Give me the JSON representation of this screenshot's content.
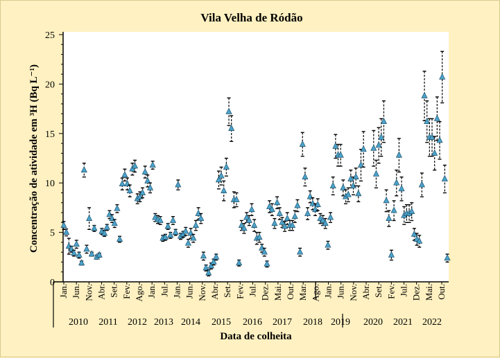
{
  "chart_data": {
    "type": "scatter",
    "title": "Vila Velha de Ródão",
    "xlabel": "Data de colheita",
    "ylabel": "Concentração de atividade em ³H (Bq L⁻¹)",
    "ylim": [
      0,
      25
    ],
    "yticks": [
      0,
      5,
      10,
      15,
      20,
      25
    ],
    "grid": false,
    "legend": "none",
    "marker": "triangle",
    "marker_color": "#4BA3CC",
    "errorbar_color": "#000000",
    "background_color": "#FFF1C1",
    "month_ticks": [
      {
        "label": "Jan.",
        "date": "2010-01"
      },
      {
        "label": "Jun.",
        "date": "2010-06"
      },
      {
        "label": "Nov.",
        "date": "2010-11"
      },
      {
        "label": "Abr.",
        "date": "2011-04"
      },
      {
        "label": "Set.",
        "date": "2011-09"
      },
      {
        "label": "Fev.",
        "date": "2012-02"
      },
      {
        "label": "Ago.",
        "date": "2012-08"
      },
      {
        "label": "Jan.",
        "date": "2013-01"
      },
      {
        "label": "Jul.",
        "date": "2013-07"
      },
      {
        "label": "Jan.",
        "date": "2014-01"
      },
      {
        "label": "Jun.",
        "date": "2014-06"
      },
      {
        "label": "Nov.",
        "date": "2014-11"
      },
      {
        "label": "Abr.",
        "date": "2015-04"
      },
      {
        "label": "Set.",
        "date": "2015-09"
      },
      {
        "label": "Fev.",
        "date": "2016-02"
      },
      {
        "label": "Jul.",
        "date": "2016-07"
      },
      {
        "label": "Dez.",
        "date": "2016-12"
      },
      {
        "label": "Mai.",
        "date": "2017-05"
      },
      {
        "label": "Out.",
        "date": "2017-10"
      },
      {
        "label": "Mar.",
        "date": "2018-03"
      },
      {
        "label": "Ago.",
        "date": "2018-08"
      },
      {
        "label": "Jan.",
        "date": "2019-01"
      },
      {
        "label": "Jun.",
        "date": "2019-06"
      },
      {
        "label": "Nov.",
        "date": "2019-11"
      },
      {
        "label": "Abr.",
        "date": "2020-04"
      },
      {
        "label": "Set.",
        "date": "2020-09"
      },
      {
        "label": "Fev.",
        "date": "2021-02"
      },
      {
        "label": "Jul.",
        "date": "2021-07"
      },
      {
        "label": "Dez.",
        "date": "2021-12"
      },
      {
        "label": "Mai.",
        "date": "2022-05"
      },
      {
        "label": "Out.",
        "date": "2022-10"
      }
    ],
    "years": [
      "2010",
      "2011",
      "2012",
      "2013",
      "2014",
      "2015",
      "2016",
      "2017",
      "2018",
      "2019",
      "2020",
      "2021",
      "2022"
    ],
    "points": [
      [
        "2010-01",
        5.7,
        0.4
      ],
      [
        "2010-02",
        5.0,
        0.35
      ],
      [
        "2010-03",
        3.6,
        0.8
      ],
      [
        "2010-04",
        3.3,
        0.3
      ],
      [
        "2010-05",
        2.9,
        0.3
      ],
      [
        "2010-06",
        3.8,
        0.4
      ],
      [
        "2010-07",
        2.7,
        0.3
      ],
      [
        "2010-08",
        1.9,
        0.2
      ],
      [
        "2010-09",
        11.3,
        0.7
      ],
      [
        "2010-10",
        3.3,
        0.4
      ],
      [
        "2010-11",
        6.4,
        1.1
      ],
      [
        "2010-12",
        2.8,
        0.2
      ],
      [
        "2011-01",
        5.4,
        0.3
      ],
      [
        "2011-02",
        2.5,
        0.2
      ],
      [
        "2011-03",
        2.7,
        0.2
      ],
      [
        "2011-04",
        5.1,
        0.3
      ],
      [
        "2011-05",
        4.9,
        0.3
      ],
      [
        "2011-06",
        5.5,
        0.3
      ],
      [
        "2011-07",
        6.8,
        0.4
      ],
      [
        "2011-08",
        6.4,
        0.4
      ],
      [
        "2011-09",
        5.9,
        0.4
      ],
      [
        "2011-10",
        7.4,
        0.4
      ],
      [
        "2011-11",
        4.3,
        0.3
      ],
      [
        "2011-12",
        9.9,
        0.6
      ],
      [
        "2012-01",
        10.8,
        0.6
      ],
      [
        "2012-02",
        9.9,
        0.6
      ],
      [
        "2012-03",
        9.2,
        0.6
      ],
      [
        "2012-04",
        11.4,
        0.6
      ],
      [
        "2012-05",
        11.7,
        0.6
      ],
      [
        "2012-06",
        8.4,
        0.5
      ],
      [
        "2012-07",
        8.6,
        0.5
      ],
      [
        "2012-08",
        9.0,
        0.5
      ],
      [
        "2012-09",
        11.1,
        0.6
      ],
      [
        "2012-10",
        10.2,
        0.6
      ],
      [
        "2012-11",
        9.5,
        0.5
      ],
      [
        "2012-12",
        11.8,
        0.4
      ],
      [
        "2013-01",
        6.5,
        0.4
      ],
      [
        "2013-02",
        6.3,
        0.4
      ],
      [
        "2013-03",
        6.2,
        0.4
      ],
      [
        "2013-04",
        4.4,
        0.3
      ],
      [
        "2013-05",
        4.5,
        0.3
      ],
      [
        "2013-06",
        5.6,
        0.3
      ],
      [
        "2013-07",
        4.7,
        0.3
      ],
      [
        "2013-08",
        6.2,
        0.4
      ],
      [
        "2013-09",
        5.0,
        0.3
      ],
      [
        "2013-10",
        9.8,
        0.5
      ],
      [
        "2013-11",
        4.6,
        0.3
      ],
      [
        "2013-12",
        4.8,
        0.3
      ],
      [
        "2014-01",
        5.1,
        0.4
      ],
      [
        "2014-02",
        3.9,
        0.4
      ],
      [
        "2014-03",
        4.9,
        0.5
      ],
      [
        "2014-04",
        4.4,
        0.4
      ],
      [
        "2014-05",
        5.7,
        0.5
      ],
      [
        "2014-06",
        6.9,
        0.6
      ],
      [
        "2014-07",
        6.4,
        0.5
      ],
      [
        "2014-08",
        2.6,
        0.4
      ],
      [
        "2014-09",
        1.4,
        0.3
      ],
      [
        "2014-10",
        0.9,
        0.3
      ],
      [
        "2014-11",
        1.6,
        0.3
      ],
      [
        "2014-12",
        2.0,
        0.3
      ],
      [
        "2015-01",
        2.5,
        0.3
      ],
      [
        "2015-02",
        10.3,
        0.9
      ],
      [
        "2015-03",
        10.7,
        0.9
      ],
      [
        "2015-04",
        9.2,
        1.0
      ],
      [
        "2015-05",
        11.6,
        0.9
      ],
      [
        "2015-06",
        17.2,
        1.4
      ],
      [
        "2015-07",
        15.5,
        1.3
      ],
      [
        "2015-08",
        8.3,
        0.8
      ],
      [
        "2015-09",
        8.3,
        0.7
      ],
      [
        "2015-10",
        1.9,
        0.3
      ],
      [
        "2015-11",
        5.7,
        0.5
      ],
      [
        "2015-12",
        5.4,
        0.5
      ],
      [
        "2016-01",
        6.5,
        0.5
      ],
      [
        "2016-02",
        6.2,
        0.5
      ],
      [
        "2016-03",
        7.3,
        0.6
      ],
      [
        "2016-04",
        5.7,
        0.6
      ],
      [
        "2016-05",
        4.4,
        0.6
      ],
      [
        "2016-06",
        4.5,
        0.5
      ],
      [
        "2016-07",
        3.4,
        0.4
      ],
      [
        "2016-08",
        3.0,
        0.4
      ],
      [
        "2016-09",
        1.8,
        0.3
      ],
      [
        "2016-10",
        7.6,
        0.6
      ],
      [
        "2016-11",
        7.3,
        0.6
      ],
      [
        "2016-12",
        5.9,
        0.5
      ],
      [
        "2017-01",
        8.0,
        0.6
      ],
      [
        "2017-02",
        6.9,
        0.6
      ],
      [
        "2017-03",
        6.0,
        0.5
      ],
      [
        "2017-04",
        5.6,
        0.5
      ],
      [
        "2017-05",
        6.4,
        0.6
      ],
      [
        "2017-06",
        5.7,
        0.5
      ],
      [
        "2017-07",
        5.7,
        0.5
      ],
      [
        "2017-08",
        6.6,
        0.6
      ],
      [
        "2017-09",
        7.7,
        0.6
      ],
      [
        "2017-10",
        3.0,
        0.4
      ],
      [
        "2017-11",
        13.9,
        1.2
      ],
      [
        "2017-12",
        10.6,
        0.9
      ],
      [
        "2018-01",
        6.9,
        0.6
      ],
      [
        "2018-02",
        8.6,
        0.6
      ],
      [
        "2018-03",
        7.9,
        0.6
      ],
      [
        "2018-04",
        7.3,
        0.6
      ],
      [
        "2018-05",
        7.8,
        0.6
      ],
      [
        "2018-06",
        6.4,
        0.5
      ],
      [
        "2018-07",
        6.2,
        0.5
      ],
      [
        "2018-08",
        5.9,
        0.5
      ],
      [
        "2018-09",
        3.7,
        0.4
      ],
      [
        "2018-10",
        6.5,
        0.5
      ],
      [
        "2018-11",
        9.7,
        0.9
      ],
      [
        "2018-12",
        13.7,
        1.2
      ],
      [
        "2019-01",
        12.8,
        1.1
      ],
      [
        "2019-02",
        12.8,
        1.1
      ],
      [
        "2019-03",
        9.5,
        0.8
      ],
      [
        "2019-04",
        8.6,
        0.7
      ],
      [
        "2019-05",
        8.8,
        0.7
      ],
      [
        "2019-06",
        10.4,
        0.9
      ],
      [
        "2019-07",
        9.7,
        0.9
      ],
      [
        "2019-08",
        10.6,
        0.9
      ],
      [
        "2019-09",
        8.9,
        0.8
      ],
      [
        "2019-10",
        11.8,
        1.6
      ],
      [
        "2019-11",
        13.4,
        1.8
      ],
      [
        "2020-03",
        13.5,
        1.8
      ],
      [
        "2020-04",
        10.9,
        1.4
      ],
      [
        "2020-05",
        13.8,
        1.8
      ],
      [
        "2020-06",
        14.6,
        1.9
      ],
      [
        "2020-07",
        16.2,
        2.1
      ],
      [
        "2020-08",
        8.2,
        1.1
      ],
      [
        "2020-09",
        6.4,
        0.8
      ],
      [
        "2020-10",
        2.7,
        0.5
      ],
      [
        "2020-11",
        7.2,
        1.0
      ],
      [
        "2020-12",
        10.0,
        1.3
      ],
      [
        "2021-01",
        12.8,
        1.7
      ],
      [
        "2021-02",
        9.4,
        1.2
      ],
      [
        "2021-03",
        6.7,
        0.9
      ],
      [
        "2021-04",
        6.9,
        0.9
      ],
      [
        "2021-05",
        6.9,
        0.9
      ],
      [
        "2021-06",
        7.1,
        0.9
      ],
      [
        "2021-07",
        4.8,
        0.6
      ],
      [
        "2021-08",
        4.3,
        0.6
      ],
      [
        "2021-09",
        4.1,
        0.6
      ],
      [
        "2021-10",
        9.8,
        1.2
      ],
      [
        "2021-11",
        18.8,
        2.5
      ],
      [
        "2021-12",
        16.2,
        2.1
      ],
      [
        "2022-01",
        14.6,
        1.9
      ],
      [
        "2022-02",
        14.6,
        1.9
      ],
      [
        "2022-03",
        13.0,
        1.7
      ],
      [
        "2022-04",
        16.5,
        2.2
      ],
      [
        "2022-05",
        14.3,
        1.9
      ],
      [
        "2022-06",
        20.7,
        2.6
      ],
      [
        "2022-07",
        10.4,
        1.4
      ],
      [
        "2022-08",
        2.4,
        0.4
      ]
    ]
  }
}
